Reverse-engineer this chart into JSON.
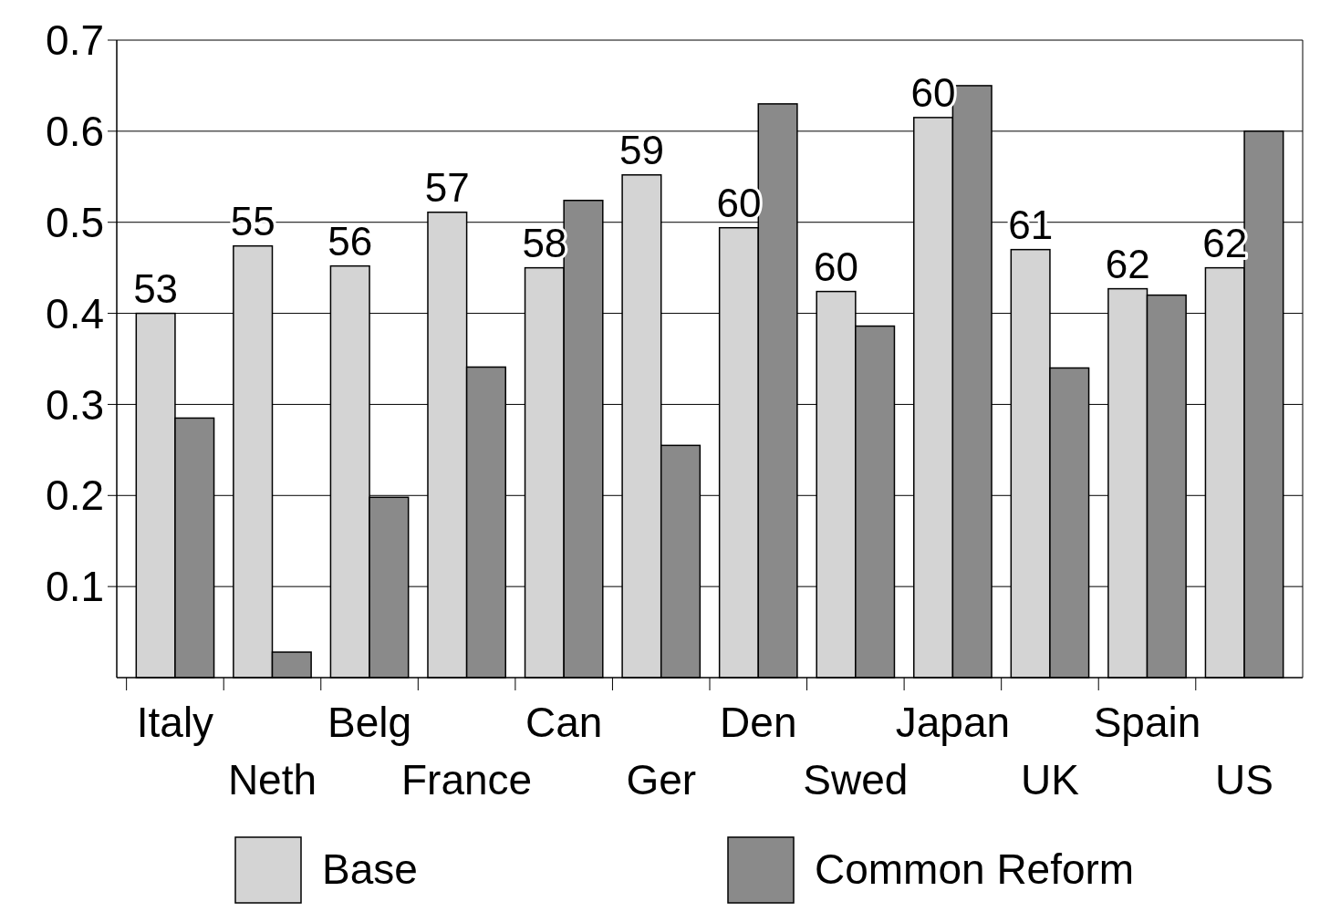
{
  "chart_data": {
    "type": "bar",
    "categories": [
      "Italy",
      "Neth",
      "Belg",
      "France",
      "Can",
      "Ger",
      "Den",
      "Swed",
      "Japan",
      "UK",
      "Spain",
      "US"
    ],
    "series": [
      {
        "name": "Base",
        "color": "#d4d4d4",
        "values": [
          0.4,
          0.474,
          0.452,
          0.511,
          0.45,
          0.552,
          0.494,
          0.424,
          0.615,
          0.47,
          0.427,
          0.45
        ]
      },
      {
        "name": "Common Reform",
        "color": "#8a8a8a",
        "values": [
          0.285,
          0.028,
          0.198,
          0.341,
          0.524,
          0.255,
          0.63,
          0.386,
          0.65,
          0.34,
          0.42,
          0.6
        ]
      }
    ],
    "annotations": [
      {
        "text": "53",
        "x": "Italy",
        "y": 0.4
      },
      {
        "text": "55",
        "x": "Neth",
        "y": 0.474
      },
      {
        "text": "56",
        "x": "Belg",
        "y": 0.452
      },
      {
        "text": "57",
        "x": "France",
        "y": 0.511
      },
      {
        "text": "58",
        "x": "Can",
        "y": 0.45
      },
      {
        "text": "59",
        "x": "Ger",
        "y": 0.552
      },
      {
        "text": "60",
        "x": "Den",
        "y": 0.494
      },
      {
        "text": "60",
        "x": "Swed",
        "y": 0.424
      },
      {
        "text": "60",
        "x": "Japan",
        "y": 0.615
      },
      {
        "text": "61",
        "x": "UK",
        "y": 0.47
      },
      {
        "text": "62",
        "x": "Spain",
        "y": 0.427
      },
      {
        "text": "62",
        "x": "US",
        "y": 0.45
      }
    ],
    "ylim": [
      0,
      0.7
    ],
    "yticks": [
      0.1,
      0.2,
      0.3,
      0.4,
      0.5,
      0.6,
      0.7
    ],
    "grid": "y",
    "legend": "bottom"
  }
}
